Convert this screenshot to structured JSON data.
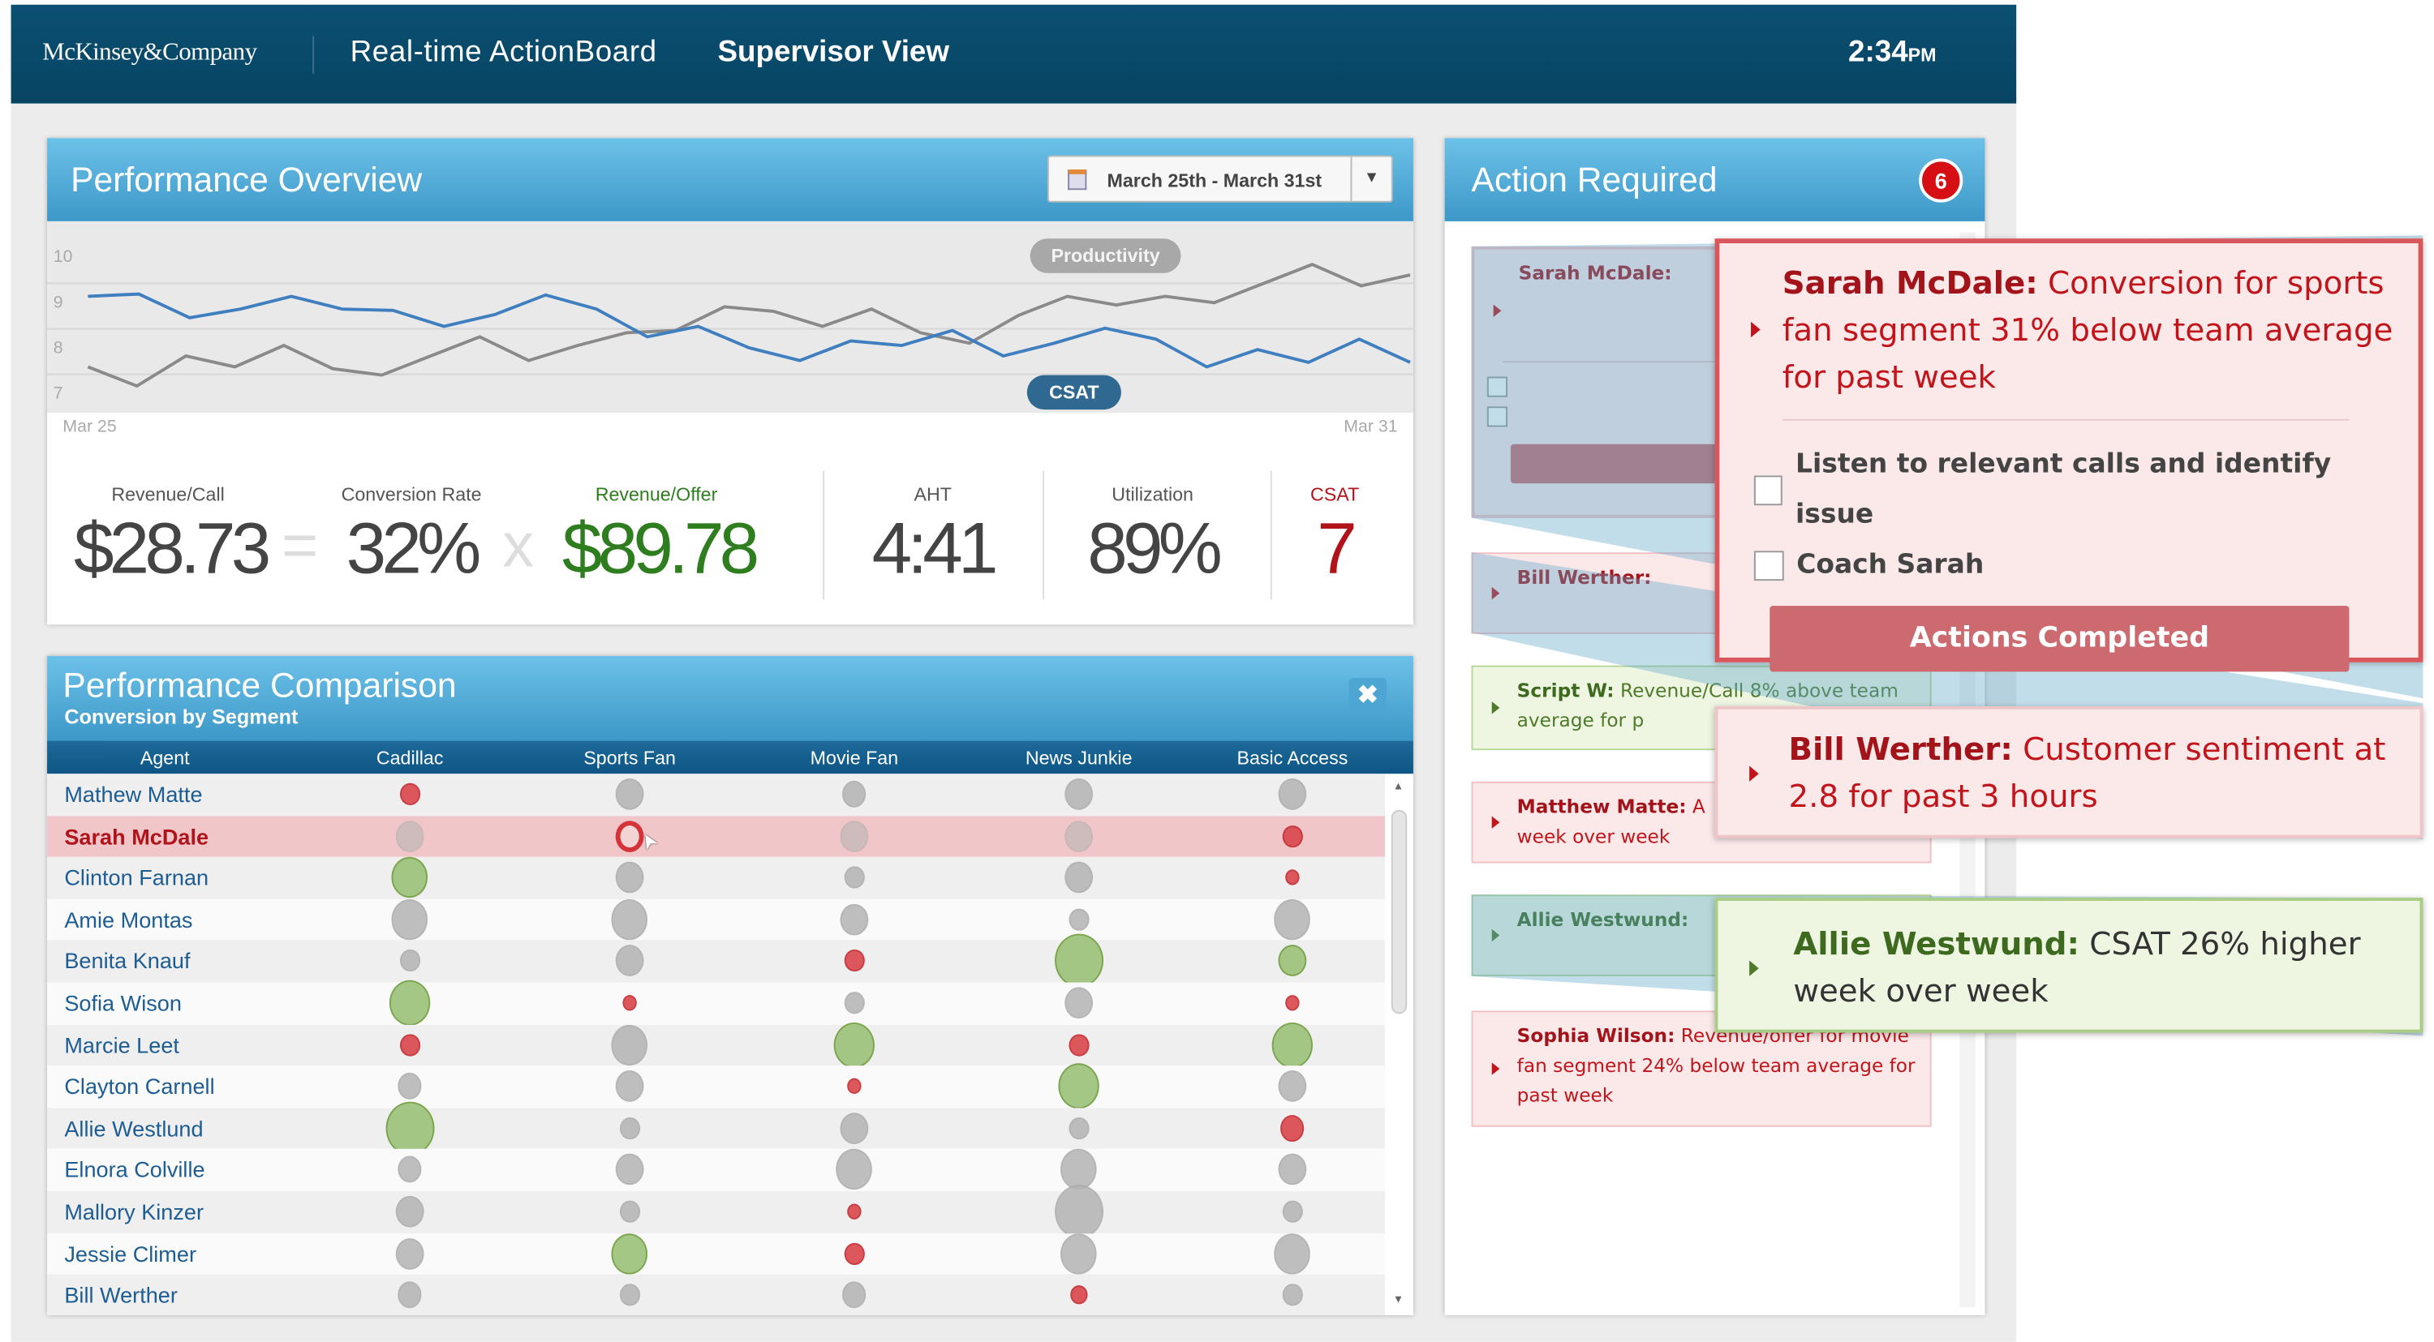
{
  "header": {
    "logo": "McKinsey&Company",
    "app_title": "Real-time ActionBoard",
    "view": "Supervisor View",
    "time": "2:34",
    "time_suffix": "PM"
  },
  "overview": {
    "title": "Performance Overview",
    "date_range": "March 25th - March 31st",
    "icons": {
      "calendar": "calendar-icon",
      "dropdown": "chevron-down-icon"
    },
    "chart_data": {
      "type": "line",
      "y_ticks": [
        "10",
        "9",
        "8",
        "7"
      ],
      "ylim": [
        7,
        10
      ],
      "x_labels": [
        "Mar 25",
        "Mar 31"
      ],
      "grid": true,
      "series": [
        {
          "name": "Productivity",
          "color": "#8a8a8a",
          "values": [
            7.56,
            7.14,
            7.8,
            7.56,
            8.03,
            7.52,
            7.38,
            7.8,
            8.22,
            7.7,
            8.03,
            8.31,
            8.36,
            8.88,
            8.78,
            8.45,
            8.83,
            8.31,
            8.08,
            8.69,
            9.11,
            8.92,
            9.11,
            8.97,
            9.39,
            9.81,
            9.34,
            9.58
          ]
        },
        {
          "name": "CSAT",
          "color": "#3f7fc0",
          "values": [
            9.11,
            9.16,
            8.64,
            8.83,
            9.11,
            8.83,
            8.8,
            8.45,
            8.71,
            9.14,
            8.83,
            8.22,
            8.45,
            7.98,
            7.7,
            8.13,
            8.03,
            8.36,
            7.8,
            8.08,
            8.41,
            8.17,
            7.56,
            7.94,
            7.66,
            8.17,
            7.66
          ]
        }
      ]
    },
    "kpis": {
      "revenue_call": {
        "label": "Revenue/Call",
        "value": "$28.73"
      },
      "equals": "=",
      "conversion": {
        "label": "Conversion Rate",
        "value": "32%"
      },
      "times": "x",
      "revenue_offer": {
        "label": "Revenue/Offer",
        "value": "$89.78",
        "color": "#2e7d1e"
      },
      "aht": {
        "label": "AHT",
        "value": "4:41"
      },
      "utilization": {
        "label": "Utilization",
        "value": "89%"
      },
      "csat": {
        "label": "CSAT",
        "value": "7",
        "color": "#b0141a"
      }
    }
  },
  "comparison": {
    "title": "Performance Comparison",
    "subtitle": "Conversion by Segment",
    "close": "✖",
    "columns": [
      "Agent",
      "Cadillac",
      "Sports Fan",
      "Movie Fan",
      "News Junkie",
      "Basic Access"
    ],
    "status_colors": {
      "below": "#d9474d",
      "above": "#9cc27a",
      "neutral": "#b4b4b4"
    },
    "selected_row": "Sarah McDale",
    "rows": [
      {
        "agent": "Mathew Matte",
        "cells": [
          [
            2,
            "below"
          ],
          [
            3,
            "neutral"
          ],
          [
            2.5,
            "neutral"
          ],
          [
            3,
            "neutral"
          ],
          [
            3,
            "neutral"
          ]
        ]
      },
      {
        "agent": "Sarah McDale",
        "cells": [
          [
            3,
            "neutral"
          ],
          [
            3,
            "below"
          ],
          [
            3,
            "neutral"
          ],
          [
            3,
            "neutral"
          ],
          [
            2,
            "below"
          ]
        ]
      },
      {
        "agent": "Clinton Farnan",
        "cells": [
          [
            4,
            "above"
          ],
          [
            3,
            "neutral"
          ],
          [
            2,
            "neutral"
          ],
          [
            3,
            "neutral"
          ],
          [
            1,
            "below"
          ]
        ]
      },
      {
        "agent": "Amie Montas",
        "cells": [
          [
            4,
            "neutral"
          ],
          [
            4,
            "neutral"
          ],
          [
            3,
            "neutral"
          ],
          [
            2,
            "neutral"
          ],
          [
            4,
            "neutral"
          ]
        ]
      },
      {
        "agent": "Benita Knauf",
        "cells": [
          [
            2,
            "neutral"
          ],
          [
            3,
            "neutral"
          ],
          [
            2,
            "below"
          ],
          [
            5,
            "above"
          ],
          [
            3,
            "above"
          ]
        ]
      },
      {
        "agent": "Sofia Wison",
        "cells": [
          [
            4.5,
            "above"
          ],
          [
            1,
            "below"
          ],
          [
            2,
            "neutral"
          ],
          [
            3,
            "neutral"
          ],
          [
            1,
            "below"
          ]
        ]
      },
      {
        "agent": "Marcie Leet",
        "cells": [
          [
            2,
            "below"
          ],
          [
            4,
            "neutral"
          ],
          [
            4.5,
            "above"
          ],
          [
            2,
            "below"
          ],
          [
            4.5,
            "above"
          ]
        ]
      },
      {
        "agent": "Clayton Carnell",
        "cells": [
          [
            2.5,
            "neutral"
          ],
          [
            3,
            "neutral"
          ],
          [
            1,
            "below"
          ],
          [
            4.5,
            "above"
          ],
          [
            3,
            "neutral"
          ]
        ]
      },
      {
        "agent": "Allie Westlund",
        "cells": [
          [
            5,
            "above"
          ],
          [
            2,
            "neutral"
          ],
          [
            3,
            "neutral"
          ],
          [
            2,
            "neutral"
          ],
          [
            2.5,
            "below"
          ]
        ]
      },
      {
        "agent": "Elnora Colville",
        "cells": [
          [
            2.5,
            "neutral"
          ],
          [
            3,
            "neutral"
          ],
          [
            4,
            "neutral"
          ],
          [
            4,
            "neutral"
          ],
          [
            3,
            "neutral"
          ]
        ]
      },
      {
        "agent": "Mallory Kinzer",
        "cells": [
          [
            3,
            "neutral"
          ],
          [
            2,
            "neutral"
          ],
          [
            1,
            "below"
          ],
          [
            5,
            "neutral"
          ],
          [
            2,
            "neutral"
          ]
        ]
      },
      {
        "agent": "Jessie Climer",
        "cells": [
          [
            3,
            "neutral"
          ],
          [
            4,
            "above"
          ],
          [
            2,
            "below"
          ],
          [
            4,
            "neutral"
          ],
          [
            4,
            "neutral"
          ]
        ]
      },
      {
        "agent": "Bill Werther",
        "cells": [
          [
            2.5,
            "neutral"
          ],
          [
            2,
            "neutral"
          ],
          [
            2.5,
            "neutral"
          ],
          [
            1.5,
            "below"
          ],
          [
            2,
            "neutral"
          ]
        ]
      }
    ]
  },
  "actions": {
    "title": "Action Required",
    "count": "6",
    "cards": [
      {
        "name": "Sarah McDale:",
        "text": "Conversion for sports fan segment 31% below team average for past week",
        "type": "red",
        "tasks": [
          "Listen to relevant calls and identify issue",
          "Coach Sarah"
        ],
        "button": "Actions Completed"
      },
      {
        "name": "Bill Werther:",
        "text": "Customer sentiment at 2.8 for past 3 hours",
        "type": "red"
      },
      {
        "name": "Script W:",
        "text": "Revenue/Call 8% above team average for p",
        "type": "green"
      },
      {
        "name": "Matthew Matte:",
        "text": "A",
        "text2": "week over week",
        "type": "red"
      },
      {
        "name": "Allie Westwund:",
        "text": "CSAT 26% higher week over week",
        "type": "green"
      },
      {
        "name": "Sophia Wilson:",
        "text": "Revenue/offer for movie fan segment 24% below team average for past week",
        "type": "red"
      }
    ]
  }
}
